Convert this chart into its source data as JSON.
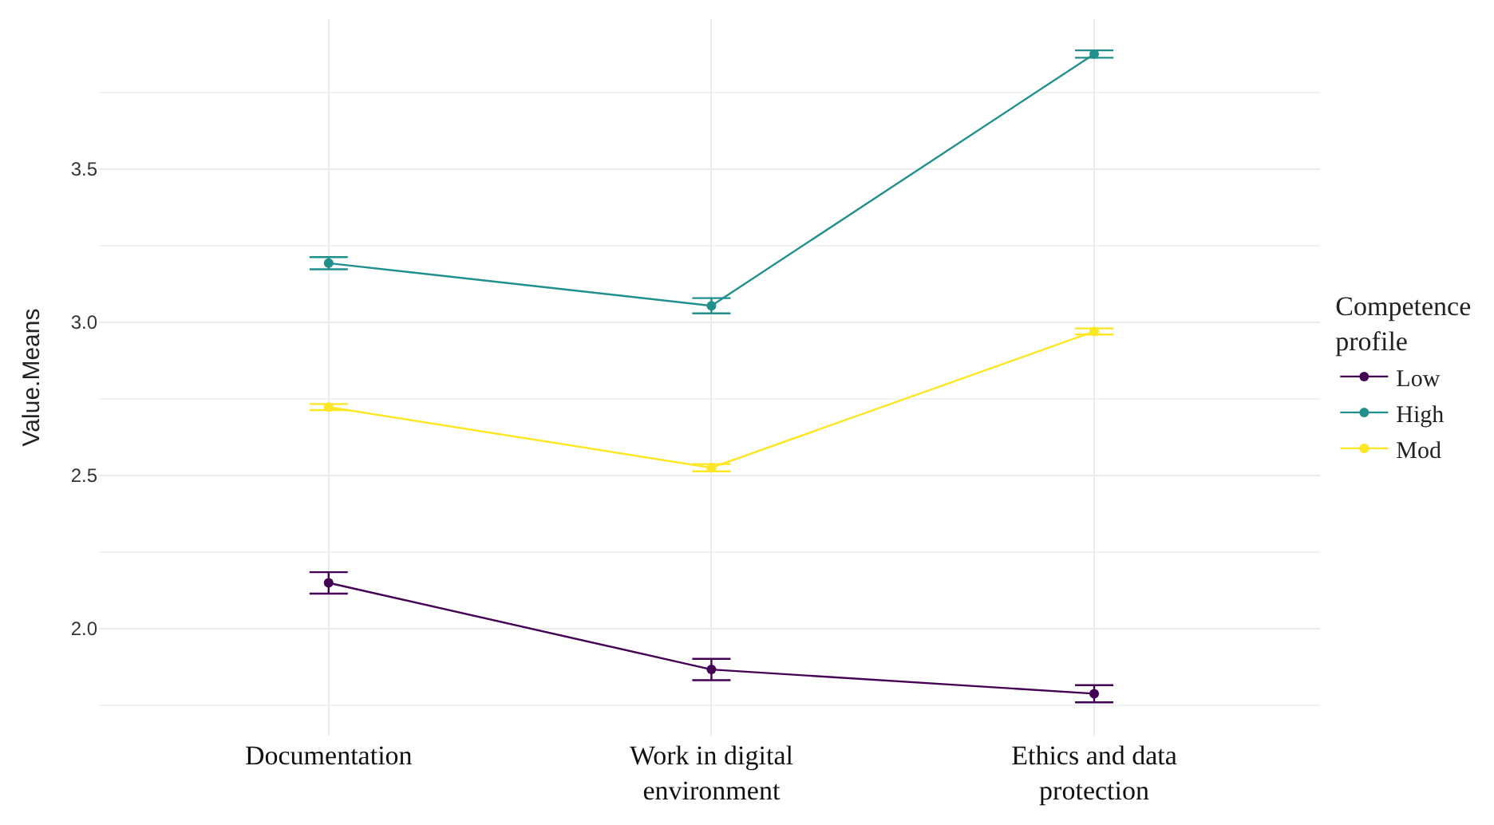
{
  "chart_data": {
    "type": "line",
    "categories": [
      "Documentation",
      "Work in digital\nenvironment",
      "Ethics and data\nprotection"
    ],
    "ylabel": "Value.Means",
    "legend_title": "Competence\nprofile",
    "series": [
      {
        "name": "Low",
        "color": "#440154",
        "values": [
          2.149,
          1.866,
          1.787
        ],
        "errors": [
          0.035,
          0.035,
          0.028
        ]
      },
      {
        "name": "High",
        "color": "#21908c",
        "values": [
          3.193,
          3.054,
          3.876
        ],
        "errors": [
          0.02,
          0.025,
          0.012
        ]
      },
      {
        "name": "Mod",
        "color": "#fde725",
        "values": [
          2.723,
          2.525,
          2.97
        ],
        "errors": [
          0.01,
          0.012,
          0.01
        ]
      }
    ],
    "ylim": [
      1.65,
      3.99
    ],
    "yticks": [
      {
        "value": 2.0,
        "label": "2.0"
      },
      {
        "value": 2.5,
        "label": "2.5"
      },
      {
        "value": 3.0,
        "label": "3.0"
      },
      {
        "value": 3.5,
        "label": "3.5"
      }
    ],
    "grid": true,
    "legend": "right",
    "marker": "circle",
    "line_style": "solid"
  }
}
